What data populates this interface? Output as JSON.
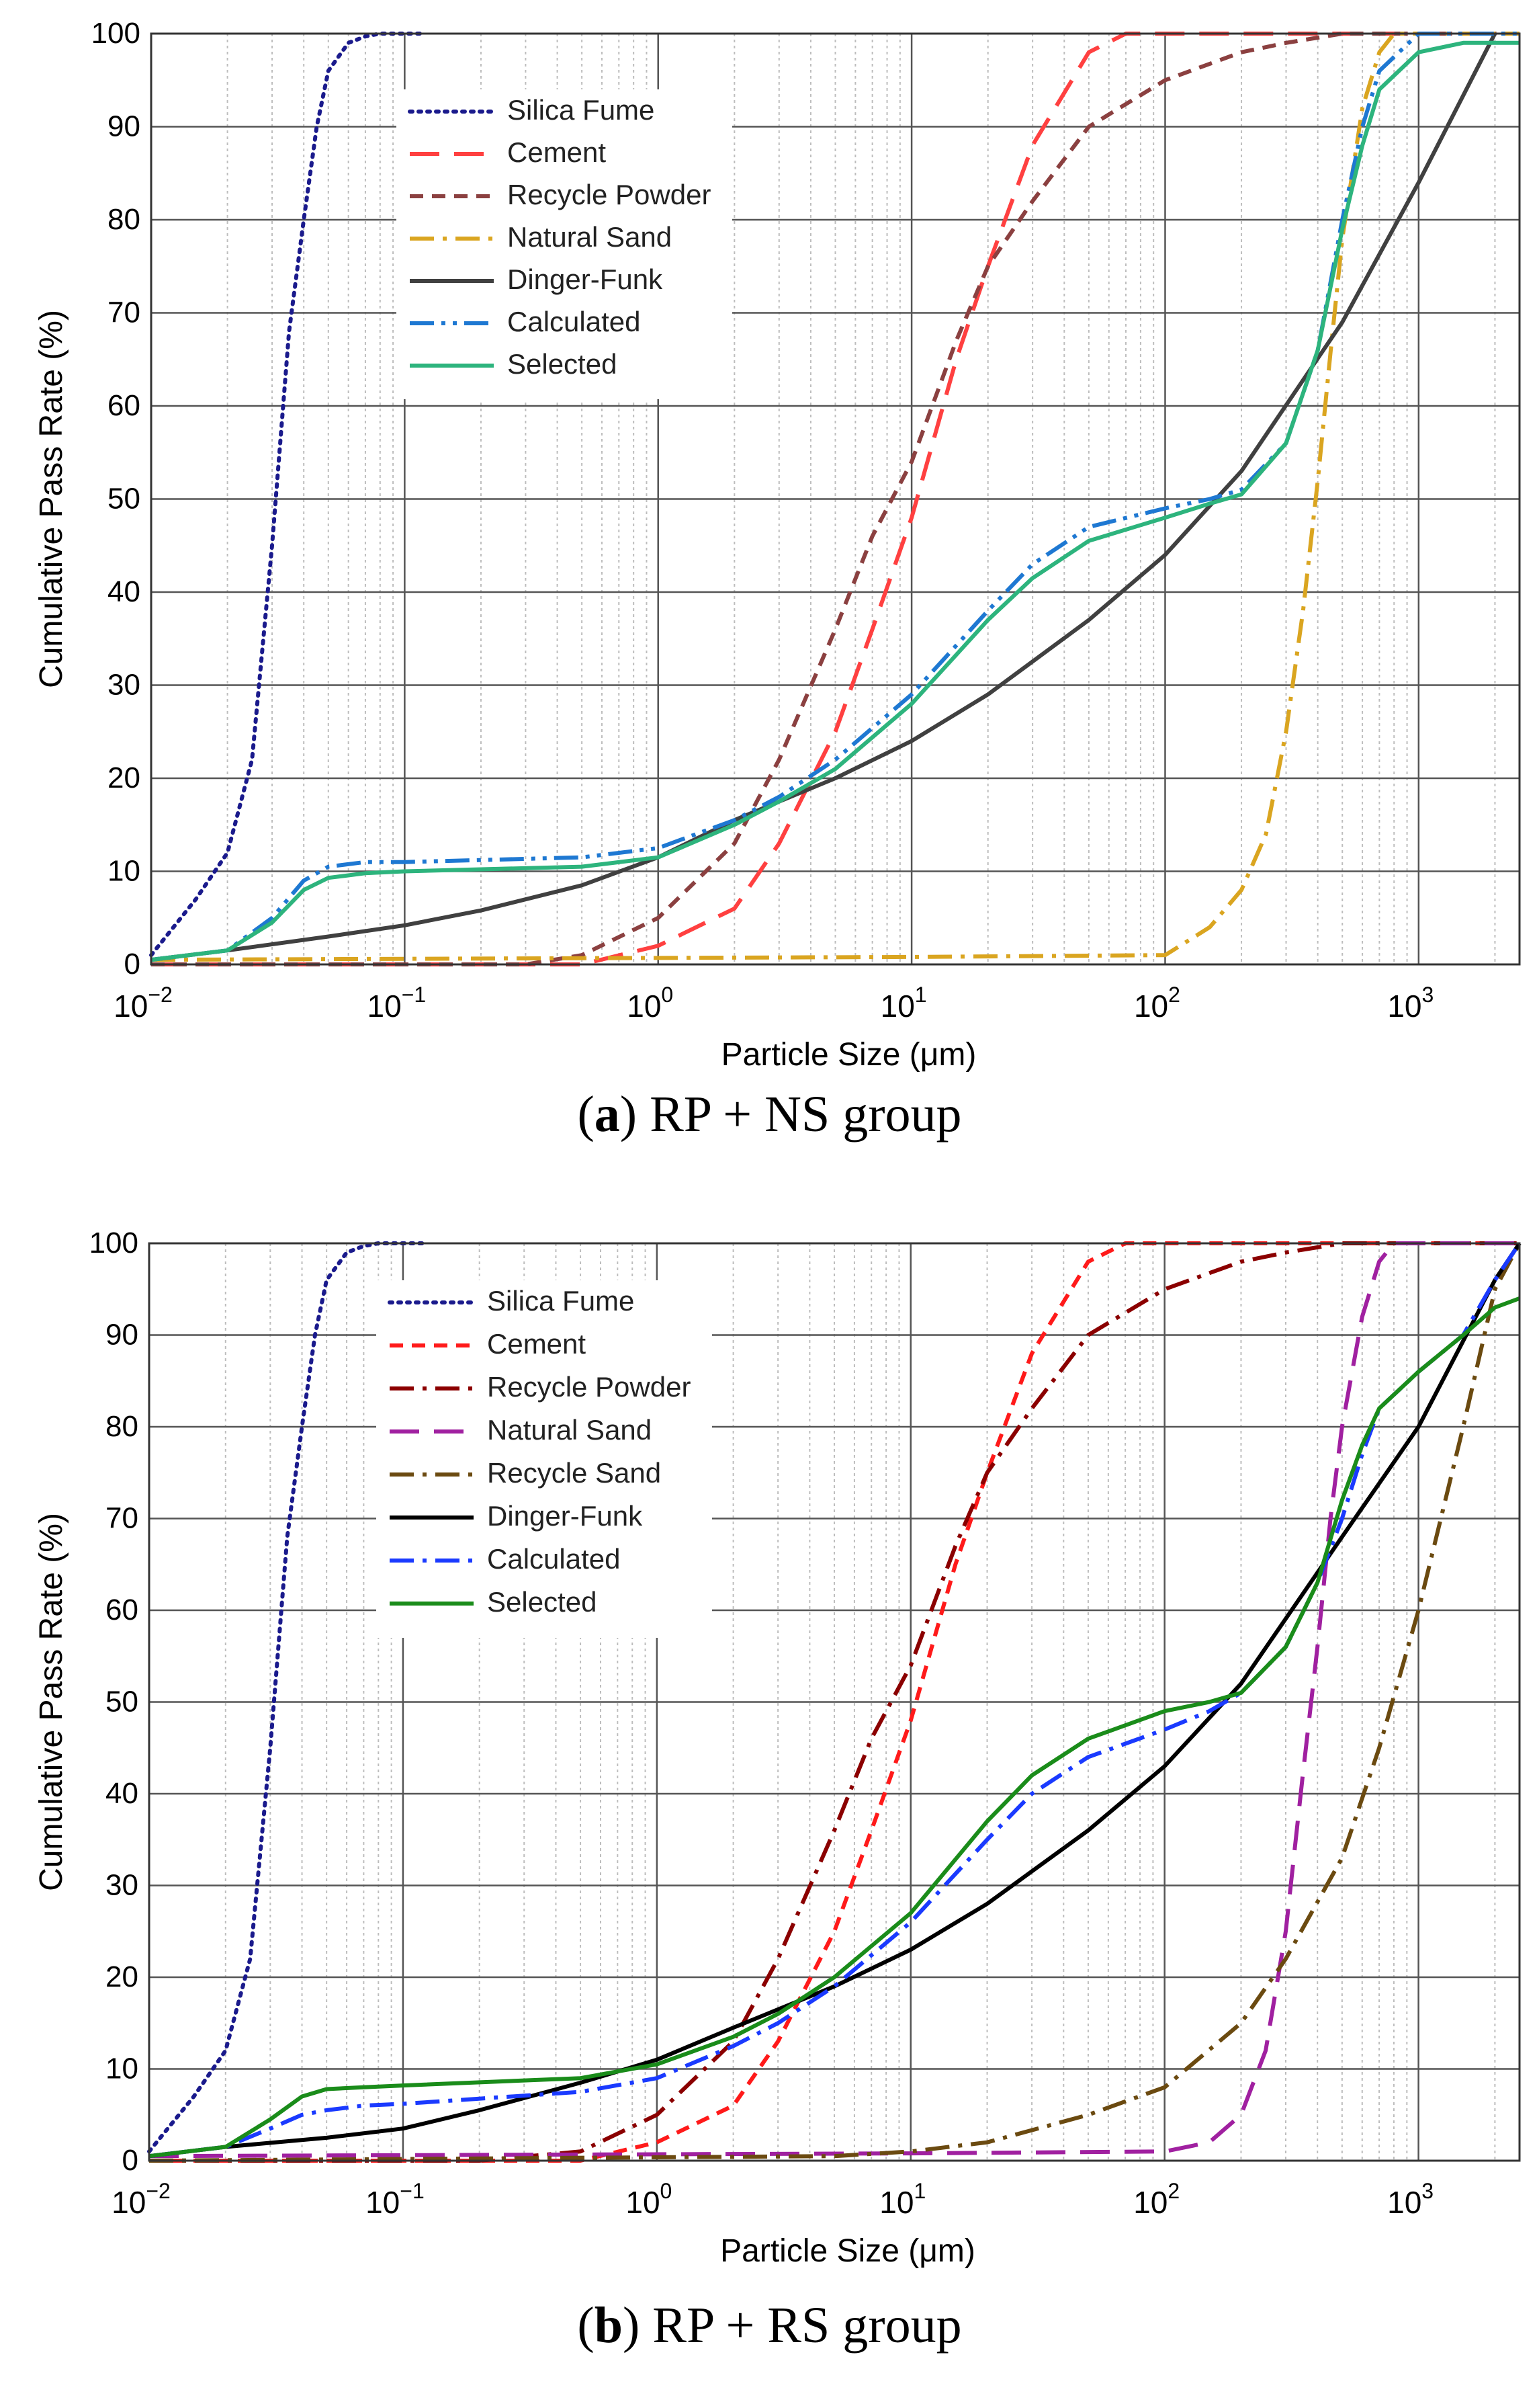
{
  "charts": [
    {
      "id": "a",
      "caption": {
        "open": "(",
        "letter": "a",
        "rest": ") RP + NS group"
      },
      "xlabel": "Particle Size (μm)",
      "ylabel": "Cumulative Pass Rate  (%)",
      "yticks": [
        "0",
        "10",
        "20",
        "30",
        "40",
        "50",
        "60",
        "70",
        "80",
        "90",
        "100"
      ],
      "xticks": [
        {
          "base": "10",
          "exp": "−2",
          "val": -2
        },
        {
          "base": "10",
          "exp": "−1",
          "val": -1
        },
        {
          "base": "10",
          "exp": "0",
          "val": 0
        },
        {
          "base": "10",
          "exp": "1",
          "val": 1
        },
        {
          "base": "10",
          "exp": "2",
          "val": 2
        },
        {
          "base": "10",
          "exp": "3",
          "val": 3
        }
      ]
    },
    {
      "id": "b",
      "caption": {
        "open": "(",
        "letter": "b",
        "rest": ") RP + RS group"
      },
      "xlabel": "Particle Size (μm)",
      "ylabel": "Cumulative Pass Rate  (%)",
      "yticks": [
        "0",
        "10",
        "20",
        "30",
        "40",
        "50",
        "60",
        "70",
        "80",
        "90",
        "100"
      ],
      "xticks": [
        {
          "base": "10",
          "exp": "−2",
          "val": -2
        },
        {
          "base": "10",
          "exp": "−1",
          "val": -1
        },
        {
          "base": "10",
          "exp": "0",
          "val": 0
        },
        {
          "base": "10",
          "exp": "1",
          "val": 1
        },
        {
          "base": "10",
          "exp": "2",
          "val": 2
        },
        {
          "base": "10",
          "exp": "3",
          "val": 3
        }
      ]
    }
  ],
  "chart_data": [
    {
      "type": "line",
      "title": "(a) RP + NS group",
      "xlabel": "Particle Size (μm)",
      "ylabel": "Cumulative Pass Rate  (%)",
      "xscale": "log10",
      "xlim": [
        0.01,
        2500
      ],
      "ylim": [
        0,
        100
      ],
      "legend": "top-left",
      "series": [
        {
          "name": "Silica Fume",
          "color": "#1a1a8c",
          "dash": "dot",
          "x": [
            0.01,
            0.015,
            0.02,
            0.025,
            0.03,
            0.035,
            0.04,
            0.045,
            0.05,
            0.06,
            0.07,
            0.08,
            0.1,
            0.12
          ],
          "y": [
            1,
            7,
            12,
            22,
            45,
            68,
            80,
            90,
            96,
            99,
            99.7,
            100,
            100,
            100
          ]
        },
        {
          "name": "Cement",
          "color": "#ff4040",
          "dash": "longdash",
          "x": [
            0.01,
            0.5,
            1,
            2,
            3,
            5,
            7,
            10,
            15,
            20,
            30,
            50,
            70,
            100,
            200,
            2500
          ],
          "y": [
            0,
            0,
            2,
            6,
            13,
            25,
            36,
            48,
            65,
            75,
            88,
            98,
            100,
            100,
            100,
            100
          ]
        },
        {
          "name": "Recycle Powder",
          "color": "#8b4040",
          "dash": "shortdash",
          "x": [
            0.01,
            0.3,
            0.5,
            1,
            2,
            3,
            5,
            7,
            10,
            15,
            20,
            30,
            50,
            100,
            200,
            300,
            500,
            1000,
            2500
          ],
          "y": [
            0,
            0,
            1,
            5,
            13,
            22,
            36,
            46,
            54,
            67,
            75,
            82,
            90,
            95,
            98,
            99,
            100,
            100,
            100
          ]
        },
        {
          "name": "Natural Sand",
          "color": "#daa520",
          "dash": "dashdot",
          "x": [
            0.01,
            10,
            100,
            150,
            200,
            250,
            300,
            350,
            400,
            450,
            500,
            600,
            700,
            800,
            1000,
            2500
          ],
          "y": [
            0.5,
            0.8,
            1,
            4,
            8,
            14,
            25,
            38,
            52,
            66,
            78,
            92,
            98,
            100,
            100,
            100
          ]
        },
        {
          "name": "Dinger-Funk",
          "color": "#404040",
          "dash": "solid",
          "x": [
            0.01,
            0.02,
            0.05,
            0.1,
            0.2,
            0.5,
            1,
            2,
            5,
            10,
            20,
            50,
            100,
            200,
            500,
            1000,
            2000
          ],
          "y": [
            0.5,
            1.5,
            3,
            4.2,
            5.8,
            8.5,
            11.5,
            15.5,
            20,
            24,
            29,
            37,
            44,
            53,
            69,
            84,
            100
          ]
        },
        {
          "name": "Calculated",
          "color": "#1e78d2",
          "dash": "dashdotdot",
          "x": [
            0.01,
            0.02,
            0.03,
            0.04,
            0.05,
            0.07,
            0.1,
            0.5,
            1,
            2,
            3,
            5,
            10,
            20,
            30,
            50,
            100,
            150,
            200,
            300,
            400,
            500,
            600,
            700,
            1000,
            1500,
            2500
          ],
          "y": [
            0.5,
            1.5,
            5,
            9,
            10.5,
            11,
            11,
            11.5,
            12.5,
            15.5,
            18,
            22,
            29,
            38,
            43,
            47,
            49,
            50,
            51,
            56,
            66,
            80,
            90,
            96,
            100,
            100,
            100
          ]
        },
        {
          "name": "Selected",
          "color": "#2db47d",
          "dash": "solid",
          "x": [
            0.01,
            0.02,
            0.03,
            0.04,
            0.05,
            0.07,
            0.1,
            0.5,
            1,
            2,
            3,
            5,
            10,
            20,
            30,
            50,
            100,
            150,
            200,
            300,
            400,
            500,
            600,
            700,
            1000,
            1500,
            2500
          ],
          "y": [
            0.5,
            1.5,
            4.5,
            8,
            9.3,
            9.8,
            10,
            10.5,
            11.5,
            15,
            17.5,
            21,
            28,
            37,
            41.5,
            45.5,
            48,
            49.5,
            50.5,
            56,
            66,
            79,
            88,
            94,
            98,
            99,
            99
          ]
        }
      ]
    },
    {
      "type": "line",
      "title": "(b) RP + RS group",
      "xlabel": "Particle Size (μm)",
      "ylabel": "Cumulative Pass Rate  (%)",
      "xscale": "log10",
      "xlim": [
        0.01,
        2500
      ],
      "ylim": [
        0,
        100
      ],
      "legend": "top-left",
      "series": [
        {
          "name": "Silica Fume",
          "color": "#1a1a8c",
          "dash": "dot",
          "x": [
            0.01,
            0.015,
            0.02,
            0.025,
            0.03,
            0.035,
            0.04,
            0.045,
            0.05,
            0.06,
            0.07,
            0.08,
            0.1,
            0.12
          ],
          "y": [
            1,
            7,
            12,
            22,
            45,
            68,
            80,
            90,
            96,
            99,
            99.7,
            100,
            100,
            100
          ]
        },
        {
          "name": "Cement",
          "color": "#ff1a1a",
          "dash": "shortdash",
          "x": [
            0.01,
            0.5,
            1,
            2,
            3,
            5,
            7,
            10,
            15,
            20,
            30,
            50,
            70,
            100,
            200,
            2500
          ],
          "y": [
            0,
            0,
            2,
            6,
            13,
            25,
            36,
            48,
            65,
            75,
            88,
            98,
            100,
            100,
            100,
            100
          ]
        },
        {
          "name": "Recycle Powder",
          "color": "#8b0000",
          "dash": "dashdot",
          "x": [
            0.01,
            0.2,
            0.5,
            1,
            2,
            3,
            5,
            7,
            10,
            15,
            20,
            30,
            50,
            100,
            200,
            300,
            500,
            1000,
            2500
          ],
          "y": [
            0,
            0,
            1,
            5,
            13,
            22,
            36,
            46,
            54,
            67,
            75,
            82,
            90,
            95,
            98,
            99,
            100,
            100,
            100
          ]
        },
        {
          "name": "Natural Sand",
          "color": "#a020a0",
          "dash": "longdash",
          "x": [
            0.01,
            10,
            100,
            150,
            200,
            250,
            300,
            350,
            400,
            450,
            500,
            600,
            700,
            800,
            1000,
            2500
          ],
          "y": [
            0.5,
            0.8,
            1,
            2,
            5,
            12,
            25,
            42,
            56,
            70,
            80,
            92,
            98,
            100,
            100,
            100
          ]
        },
        {
          "name": "Recycle Sand",
          "color": "#6b4a10",
          "dash": "dashdot",
          "x": [
            0.01,
            5,
            10,
            20,
            50,
            100,
            200,
            300,
            500,
            700,
            1000,
            1500,
            2000,
            2500
          ],
          "y": [
            0,
            0.5,
            1,
            2,
            5,
            8,
            15,
            22,
            33,
            45,
            60,
            80,
            95,
            100
          ]
        },
        {
          "name": "Dinger-Funk",
          "color": "#000000",
          "dash": "solid",
          "x": [
            0.01,
            0.02,
            0.05,
            0.1,
            0.2,
            0.5,
            1,
            2,
            5,
            10,
            20,
            50,
            100,
            200,
            500,
            1000,
            2000,
            2500
          ],
          "y": [
            0.5,
            1.5,
            2.5,
            3.5,
            5.5,
            8.5,
            11,
            14.5,
            19,
            23,
            28,
            36,
            43,
            52,
            68,
            80,
            96,
            100
          ]
        },
        {
          "name": "Calculated",
          "color": "#1a3aff",
          "dash": "dashdot",
          "x": [
            0.01,
            0.02,
            0.03,
            0.04,
            0.05,
            0.07,
            0.1,
            0.5,
            1,
            2,
            3,
            5,
            10,
            20,
            30,
            50,
            100,
            150,
            200,
            300,
            400,
            500,
            600,
            700,
            1000,
            1500,
            2000,
            2500
          ],
          "y": [
            0.5,
            1.5,
            3.5,
            5,
            5.5,
            6,
            6.2,
            7.5,
            9,
            12.5,
            15,
            19,
            26,
            35,
            40,
            44,
            47,
            49,
            51,
            56,
            63,
            70,
            77,
            82,
            86,
            90,
            96,
            100
          ]
        },
        {
          "name": "Selected",
          "color": "#1a8c1a",
          "dash": "solid",
          "x": [
            0.01,
            0.02,
            0.03,
            0.04,
            0.05,
            0.07,
            0.1,
            0.5,
            1,
            2,
            3,
            5,
            10,
            20,
            30,
            50,
            100,
            150,
            200,
            300,
            400,
            500,
            600,
            700,
            1000,
            1500,
            2000,
            2500
          ],
          "y": [
            0.5,
            1.5,
            4.5,
            7,
            7.8,
            8,
            8.2,
            9,
            10.5,
            13.5,
            16,
            20,
            27,
            37,
            42,
            46,
            49,
            50,
            51,
            56,
            63,
            72,
            78,
            82,
            86,
            90,
            93,
            94
          ]
        }
      ]
    }
  ]
}
